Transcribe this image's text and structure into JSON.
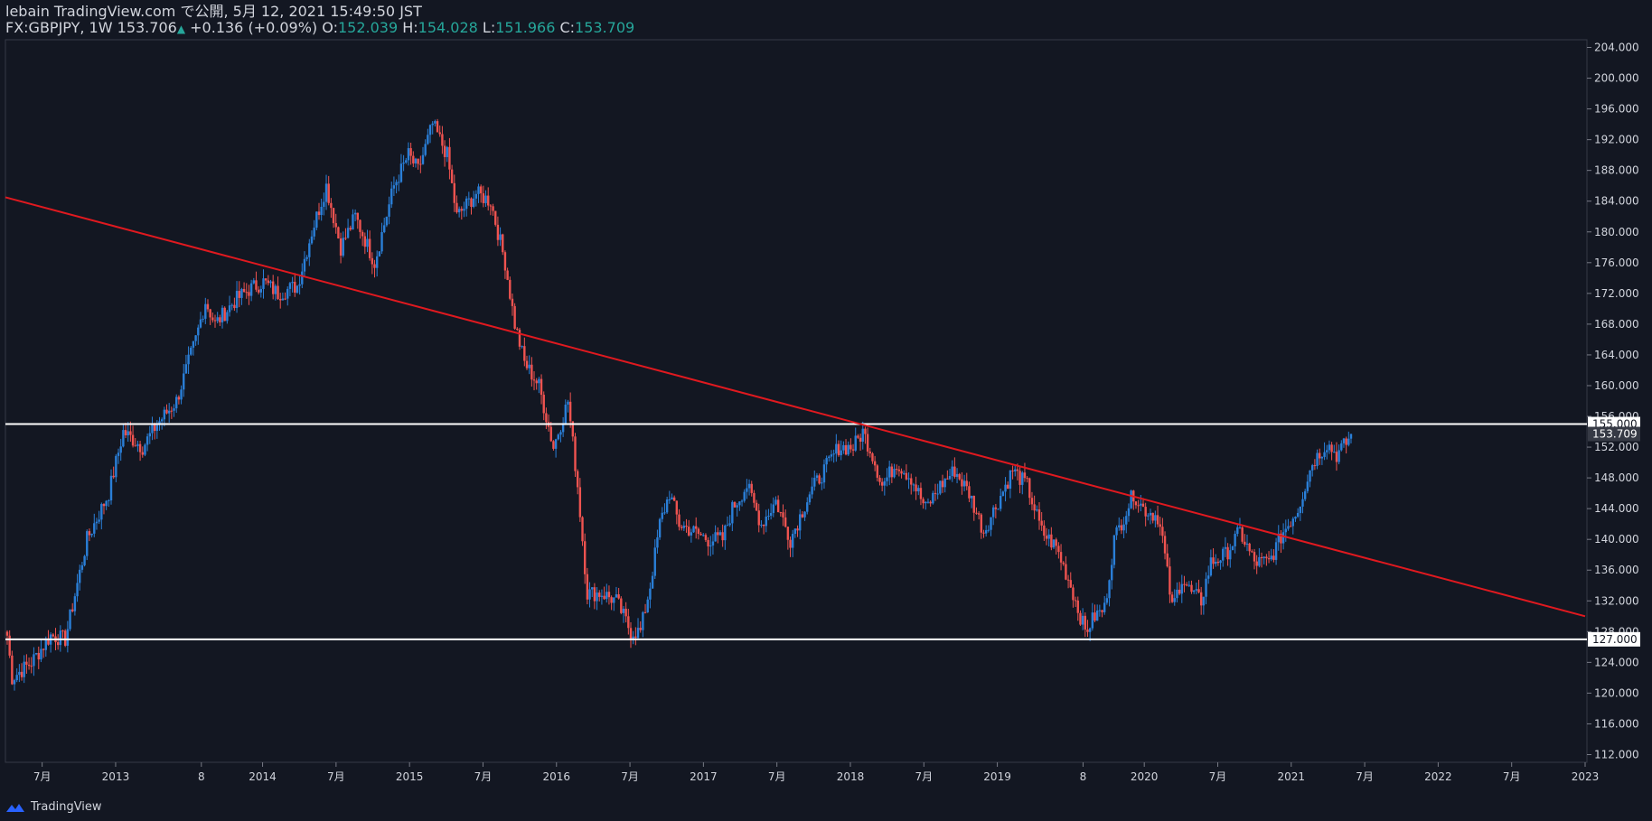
{
  "header": {
    "publish_line": "lebain TradingView.com で公開, 5月 12, 2021 15:49:50 JST",
    "symbol": "FX:GBPJPY, 1W",
    "last": "153.706",
    "change": "+0.136 (+0.09%)",
    "open_label": "O:",
    "open": "152.039",
    "high_label": "H:",
    "high": "154.028",
    "low_label": "L:",
    "low": "151.966",
    "close_label": "C:",
    "close": "153.709"
  },
  "footer": {
    "brand": "TradingView",
    "logo_icon": "tradingview-logo-icon"
  },
  "colors": {
    "background": "#131722",
    "up": "#2a7fd8",
    "down": "#ef5350",
    "trendline": "#e0191f",
    "level": "#ffffff",
    "axis_text": "#d1d4dc"
  },
  "chart_data": {
    "type": "candlestick",
    "ylim": [
      111,
      205
    ],
    "y_ticks": [
      "112.000",
      "116.000",
      "120.000",
      "124.000",
      "128.000",
      "132.000",
      "136.000",
      "140.000",
      "144.000",
      "148.000",
      "152.000",
      "156.000",
      "160.000",
      "164.000",
      "168.000",
      "172.000",
      "176.000",
      "180.000",
      "184.000",
      "188.000",
      "192.000",
      "196.000",
      "200.000",
      "204.000"
    ],
    "x_ticks": [
      "7月",
      "2013",
      "8",
      "2014",
      "7月",
      "2015",
      "7月",
      "2016",
      "7月",
      "2017",
      "7月",
      "2018",
      "7月",
      "2019",
      "8",
      "2020",
      "7月",
      "2021",
      "7月",
      "2022",
      "7月",
      "2023"
    ],
    "price_labels": [
      {
        "value": 155,
        "text": "155.000"
      },
      {
        "value": 153.709,
        "text": "153.709"
      },
      {
        "value": 127,
        "text": "127.000"
      }
    ],
    "horizontal_levels": [
      155,
      127
    ],
    "trendline": {
      "start": {
        "date": "2012-04",
        "price": 184.5
      },
      "end": {
        "date": "2023-01",
        "price": 130.0
      }
    },
    "series_anchors": [
      [
        0,
        127.5
      ],
      [
        2,
        122
      ],
      [
        10,
        124
      ],
      [
        18,
        127.5
      ],
      [
        24,
        127
      ],
      [
        33,
        140
      ],
      [
        42,
        146
      ],
      [
        48,
        154
      ],
      [
        56,
        152
      ],
      [
        62,
        155
      ],
      [
        70,
        158
      ],
      [
        78,
        166
      ],
      [
        82,
        171
      ],
      [
        86,
        168
      ],
      [
        94,
        171
      ],
      [
        100,
        172.5
      ],
      [
        106,
        173.5
      ],
      [
        112,
        172
      ],
      [
        120,
        173
      ],
      [
        126,
        180
      ],
      [
        132,
        186
      ],
      [
        138,
        178
      ],
      [
        144,
        182
      ],
      [
        152,
        176
      ],
      [
        160,
        186
      ],
      [
        166,
        190
      ],
      [
        170,
        188
      ],
      [
        176,
        194
      ],
      [
        182,
        190
      ],
      [
        186,
        182
      ],
      [
        194,
        185
      ],
      [
        200,
        184
      ],
      [
        206,
        176
      ],
      [
        210,
        168
      ],
      [
        214,
        163
      ],
      [
        220,
        160
      ],
      [
        226,
        152
      ],
      [
        232,
        158
      ],
      [
        236,
        147
      ],
      [
        240,
        133
      ],
      [
        246,
        133
      ],
      [
        252,
        132
      ],
      [
        258,
        128
      ],
      [
        262,
        128
      ],
      [
        266,
        134
      ],
      [
        270,
        142
      ],
      [
        274,
        146
      ],
      [
        278,
        142
      ],
      [
        284,
        141
      ],
      [
        290,
        140
      ],
      [
        296,
        140
      ],
      [
        300,
        144
      ],
      [
        306,
        147
      ],
      [
        312,
        142
      ],
      [
        318,
        145
      ],
      [
        324,
        140
      ],
      [
        332,
        146
      ],
      [
        338,
        149
      ],
      [
        344,
        152
      ],
      [
        350,
        152
      ],
      [
        354,
        154
      ],
      [
        358,
        151
      ],
      [
        362,
        147
      ],
      [
        368,
        150
      ],
      [
        374,
        148
      ],
      [
        380,
        144
      ],
      [
        386,
        147
      ],
      [
        392,
        149
      ],
      [
        398,
        146
      ],
      [
        404,
        141
      ],
      [
        410,
        145
      ],
      [
        416,
        149
      ],
      [
        422,
        147
      ],
      [
        428,
        141
      ],
      [
        434,
        139
      ],
      [
        440,
        134
      ],
      [
        446,
        128
      ],
      [
        450,
        130
      ],
      [
        454,
        131
      ],
      [
        458,
        140
      ],
      [
        462,
        143
      ],
      [
        466,
        146
      ],
      [
        470,
        144
      ],
      [
        476,
        143
      ],
      [
        478,
        140
      ],
      [
        482,
        131
      ],
      [
        486,
        135
      ],
      [
        490,
        133
      ],
      [
        494,
        132
      ],
      [
        498,
        137
      ],
      [
        504,
        138
      ],
      [
        510,
        141
      ],
      [
        516,
        137
      ],
      [
        522,
        137
      ],
      [
        528,
        141
      ],
      [
        534,
        144
      ],
      [
        540,
        150
      ],
      [
        546,
        152.5
      ],
      [
        550,
        151
      ],
      [
        554,
        152.5
      ],
      [
        556,
        153.7
      ]
    ]
  }
}
